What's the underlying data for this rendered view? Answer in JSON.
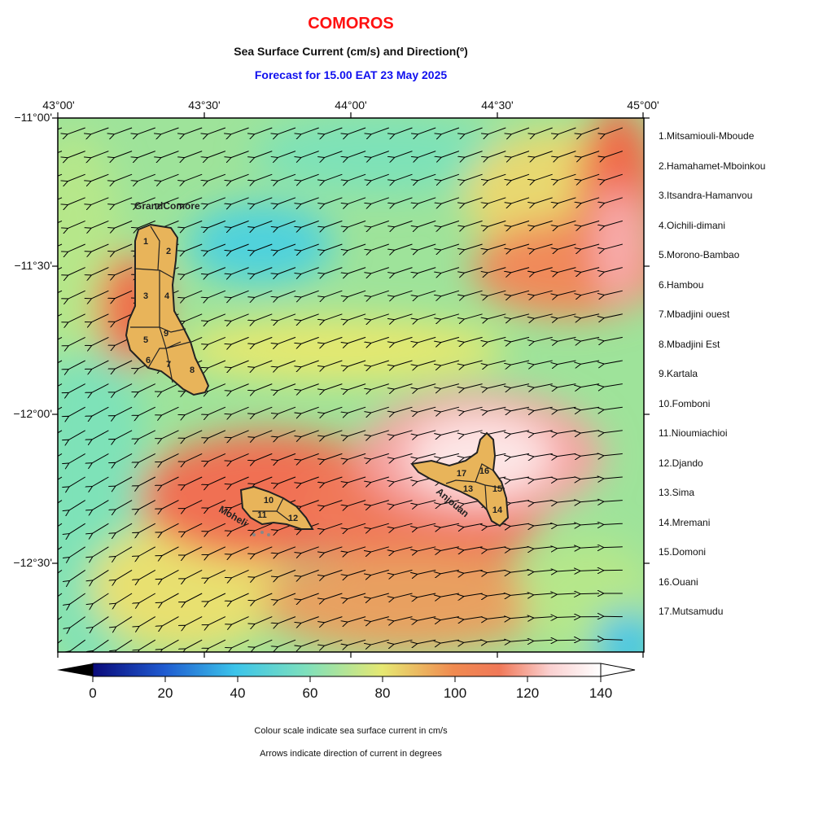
{
  "title": "COMOROS",
  "subtitle": "Sea Surface Current (cm/s) and Direction(º)",
  "forecast": "Forecast for  15.00 EAT 23 May 2025",
  "lon_labels": [
    "43°00'",
    "43°30'",
    "44°00'",
    "44°30'",
    "45°00'"
  ],
  "lat_labels": [
    "−11°00'",
    "−11°30'",
    "−12°00'",
    "−12°30'"
  ],
  "colorbar": {
    "ticks": [
      "0",
      "20",
      "40",
      "60",
      "80",
      "100",
      "120",
      "140"
    ],
    "colors": [
      "#0a0a7a",
      "#1f5ad0",
      "#3bc4ea",
      "#7ee0bc",
      "#e6e872",
      "#f08a50",
      "#f07858",
      "#fad0d0",
      "#ffffff"
    ]
  },
  "island_names": {
    "grand_comore": "GrandComore",
    "moheli": "Moheli",
    "anjouan": "Anjouan"
  },
  "region_numbers": [
    "1",
    "2",
    "3",
    "4",
    "5",
    "6",
    "7",
    "8",
    "9",
    "10",
    "11",
    "12",
    "13",
    "14",
    "15",
    "16",
    "17"
  ],
  "regions": [
    "1.Mitsamiouli-Mboude",
    "2.Hamahamet-Mboinkou",
    "3.Itsandra-Hamanvou",
    "4.Oichili-dimani",
    "5.Morono-Bambao",
    "6.Hambou",
    "7.Mbadjini ouest",
    "8.Mbadjini Est",
    "9.Kartala",
    "10.Fomboni",
    "11.Nioumiachioi",
    "12.Djando",
    "13.Sima",
    "14.Mremani",
    "15.Domoni",
    "16.Ouani",
    "17.Mutsamudu"
  ],
  "notes": [
    "Colour scale indicate sea surface current in cm/s",
    "Arrows indicate direction of current in degrees"
  ]
}
